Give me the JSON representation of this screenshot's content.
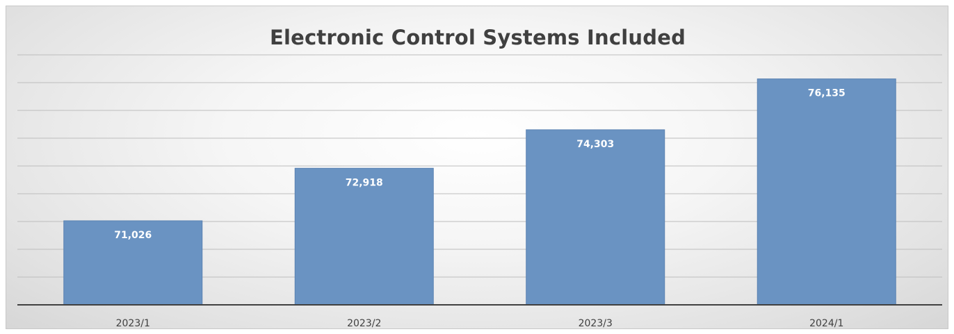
{
  "chart_data": {
    "type": "bar",
    "title": "Electronic Control Systems Included",
    "xlabel": "",
    "ylabel": "",
    "categories": [
      "2023/1",
      "2023/2",
      "2023/3",
      "2024/1"
    ],
    "values": [
      71026,
      72918,
      74303,
      76135
    ],
    "data_labels": [
      "71,026",
      "72,918",
      "74,303",
      "76,135"
    ],
    "ylim": [
      68000,
      76300
    ],
    "gridlines": [
      69000,
      70000,
      71000,
      72000,
      73000,
      74000,
      75000,
      76000,
      77000
    ],
    "grid": true,
    "legend": "none",
    "bar_color": "#6a93c2"
  }
}
